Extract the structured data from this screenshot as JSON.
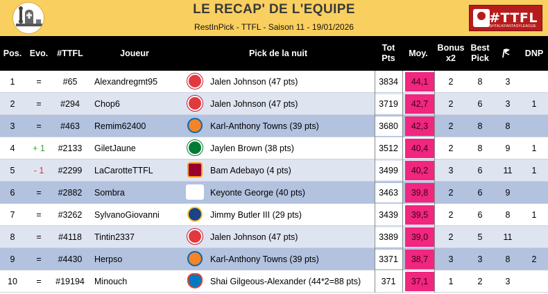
{
  "header": {
    "title": "LE RECAP' DE L'EQUIPE",
    "subtitle": "RestInPick - TTFL - Saison 11 - 19/01/2026",
    "logo_right_text": "#TTFL",
    "logo_right_small": "#TTFL",
    "logo_right_caption": "TRASHTALKFANTASYLEAGUE"
  },
  "columns": {
    "pos": "Pos.",
    "evo": "Evo.",
    "rank": "#TTFL",
    "player": "Joueur",
    "pick": "Pick de la nuit",
    "tot_line1": "Tot",
    "tot_line2": "Pts",
    "moy": "Moy.",
    "bonus_line1": "Bonus",
    "bonus_line2": "x2",
    "best_line1": "Best",
    "best_line2": "Pick",
    "streak_icon": "flag-icon",
    "dnp": "DNP"
  },
  "colors": {
    "banner": "#f9cf5f",
    "header_bg": "#000000",
    "moy_highlight": "#f0267f",
    "row_light": "#dfe4f1",
    "row_dark": "#b2c2df"
  },
  "rows": [
    {
      "pos": "1",
      "evo": "=",
      "rank": "#65",
      "player": "Alexandregmt95",
      "team": "hawks",
      "team_icon": "hawks-logo-icon",
      "pick": "Jalen Johnson (47 pts)",
      "tot": "3834",
      "moy": "44,1",
      "bonus": "2",
      "best": "8",
      "streak": "3",
      "dnp": ""
    },
    {
      "pos": "2",
      "evo": "=",
      "rank": "#294",
      "player": "Chop6",
      "team": "hawks",
      "team_icon": "hawks-logo-icon",
      "pick": "Jalen Johnson (47 pts)",
      "tot": "3719",
      "moy": "42,7",
      "bonus": "2",
      "best": "6",
      "streak": "3",
      "dnp": "1"
    },
    {
      "pos": "3",
      "evo": "=",
      "rank": "#463",
      "player": "Remim62400",
      "team": "knicks",
      "team_icon": "knicks-logo-icon",
      "pick": "Karl-Anthony Towns (39 pts)",
      "tot": "3680",
      "moy": "42,3",
      "bonus": "2",
      "best": "8",
      "streak": "8",
      "dnp": ""
    },
    {
      "pos": "4",
      "evo": "+ 1",
      "rank": "#2133",
      "player": "GiletJaune",
      "team": "celtics",
      "team_icon": "celtics-logo-icon",
      "pick": "Jaylen Brown (38 pts)",
      "tot": "3512",
      "moy": "40,4",
      "bonus": "2",
      "best": "8",
      "streak": "9",
      "dnp": "1"
    },
    {
      "pos": "5",
      "evo": "- 1",
      "rank": "#2299",
      "player": "LaCarotteTTFL",
      "team": "heat",
      "team_icon": "heat-logo-icon",
      "pick": "Bam Adebayo (4 pts)",
      "tot": "3499",
      "moy": "40,2",
      "bonus": "3",
      "best": "6",
      "streak": "11",
      "dnp": "1"
    },
    {
      "pos": "6",
      "evo": "=",
      "rank": "#2882",
      "player": "Sombra",
      "team": "jazz",
      "team_icon": "jazz-logo-icon",
      "pick": "Keyonte George (40 pts)",
      "tot": "3463",
      "moy": "39,8",
      "bonus": "2",
      "best": "6",
      "streak": "9",
      "dnp": ""
    },
    {
      "pos": "7",
      "evo": "=",
      "rank": "#3262",
      "player": "SylvanoGiovanni",
      "team": "warriors",
      "team_icon": "warriors-logo-icon",
      "pick": "Jimmy Butler III (29 pts)",
      "tot": "3439",
      "moy": "39,5",
      "bonus": "2",
      "best": "6",
      "streak": "8",
      "dnp": "1"
    },
    {
      "pos": "8",
      "evo": "=",
      "rank": "#4118",
      "player": "Tintin2337",
      "team": "hawks",
      "team_icon": "hawks-logo-icon",
      "pick": "Jalen Johnson (47 pts)",
      "tot": "3389",
      "moy": "39,0",
      "bonus": "2",
      "best": "5",
      "streak": "11",
      "dnp": ""
    },
    {
      "pos": "9",
      "evo": "=",
      "rank": "#4430",
      "player": "Herpso",
      "team": "knicks",
      "team_icon": "knicks-logo-icon",
      "pick": "Karl-Anthony Towns (39 pts)",
      "tot": "3371",
      "moy": "38,7",
      "bonus": "3",
      "best": "3",
      "streak": "8",
      "dnp": "2"
    },
    {
      "pos": "10",
      "evo": "=",
      "rank": "#19194",
      "player": "Minouch",
      "team": "thunder",
      "team_icon": "thunder-logo-icon",
      "pick": "Shai Gilgeous-Alexander (44*2=88 pts)",
      "tot": "371",
      "moy": "37,1",
      "bonus": "1",
      "best": "2",
      "streak": "3",
      "dnp": ""
    }
  ]
}
